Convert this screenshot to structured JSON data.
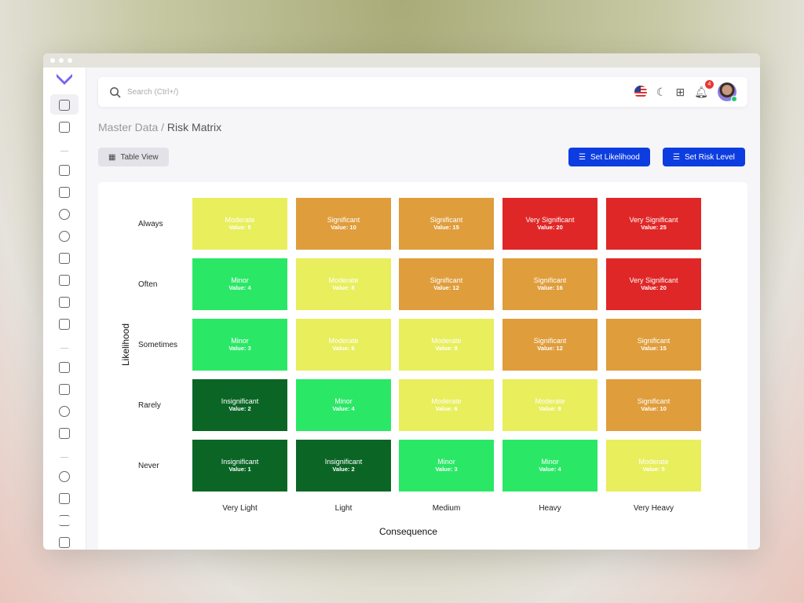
{
  "search": {
    "placeholder": "Search (Ctrl+/)"
  },
  "notifications": {
    "count": "4"
  },
  "breadcrumb": {
    "parent": "Master Data /",
    "current": "Risk Matrix"
  },
  "buttons": {
    "table_view": "Table View",
    "set_likelihood": "Set Likelihood",
    "set_risk_level": "Set Risk Level"
  },
  "colors": {
    "insignificant": "#0b6626",
    "minor": "#2ae866",
    "moderate": "#e8ee5c",
    "significant": "#df9d3c",
    "very_significant": "#e02727",
    "primary": "#0d3de0"
  },
  "matrix": {
    "y_axis": "Likelihood",
    "x_axis": "Consequence",
    "likelihood": [
      "Always",
      "Often",
      "Sometimes",
      "Rarely",
      "Never"
    ],
    "consequence": [
      "Very Light",
      "Light",
      "Medium",
      "Heavy",
      "Very Heavy"
    ],
    "rows": [
      [
        {
          "level": "Moderate",
          "value": "Value: 5",
          "c": "moderate"
        },
        {
          "level": "Significant",
          "value": "Value: 10",
          "c": "significant"
        },
        {
          "level": "Significant",
          "value": "Value: 15",
          "c": "significant"
        },
        {
          "level": "Very Significant",
          "value": "Value: 20",
          "c": "very_significant"
        },
        {
          "level": "Very Significant",
          "value": "Value: 25",
          "c": "very_significant"
        }
      ],
      [
        {
          "level": "Minor",
          "value": "Value: 4",
          "c": "minor"
        },
        {
          "level": "Moderate",
          "value": "Value: 8",
          "c": "moderate"
        },
        {
          "level": "Significant",
          "value": "Value: 12",
          "c": "significant"
        },
        {
          "level": "Significant",
          "value": "Value: 16",
          "c": "significant"
        },
        {
          "level": "Very Significant",
          "value": "Value: 20",
          "c": "very_significant"
        }
      ],
      [
        {
          "level": "Minor",
          "value": "Value: 3",
          "c": "minor"
        },
        {
          "level": "Moderate",
          "value": "Value: 6",
          "c": "moderate"
        },
        {
          "level": "Moderate",
          "value": "Value: 9",
          "c": "moderate"
        },
        {
          "level": "Significant",
          "value": "Value: 12",
          "c": "significant"
        },
        {
          "level": "Significant",
          "value": "Value: 15",
          "c": "significant"
        }
      ],
      [
        {
          "level": "Insignificant",
          "value": "Value: 2",
          "c": "insignificant"
        },
        {
          "level": "Minor",
          "value": "Value: 4",
          "c": "minor"
        },
        {
          "level": "Moderate",
          "value": "Value: 6",
          "c": "moderate"
        },
        {
          "level": "Moderate",
          "value": "Value: 8",
          "c": "moderate"
        },
        {
          "level": "Significant",
          "value": "Value: 10",
          "c": "significant"
        }
      ],
      [
        {
          "level": "Insignificant",
          "value": "Value: 1",
          "c": "insignificant"
        },
        {
          "level": "Insignificant",
          "value": "Value: 2",
          "c": "insignificant"
        },
        {
          "level": "Minor",
          "value": "Value: 3",
          "c": "minor"
        },
        {
          "level": "Minor",
          "value": "Value: 4",
          "c": "minor"
        },
        {
          "level": "Moderate",
          "value": "Value: 5",
          "c": "moderate"
        }
      ]
    ]
  }
}
